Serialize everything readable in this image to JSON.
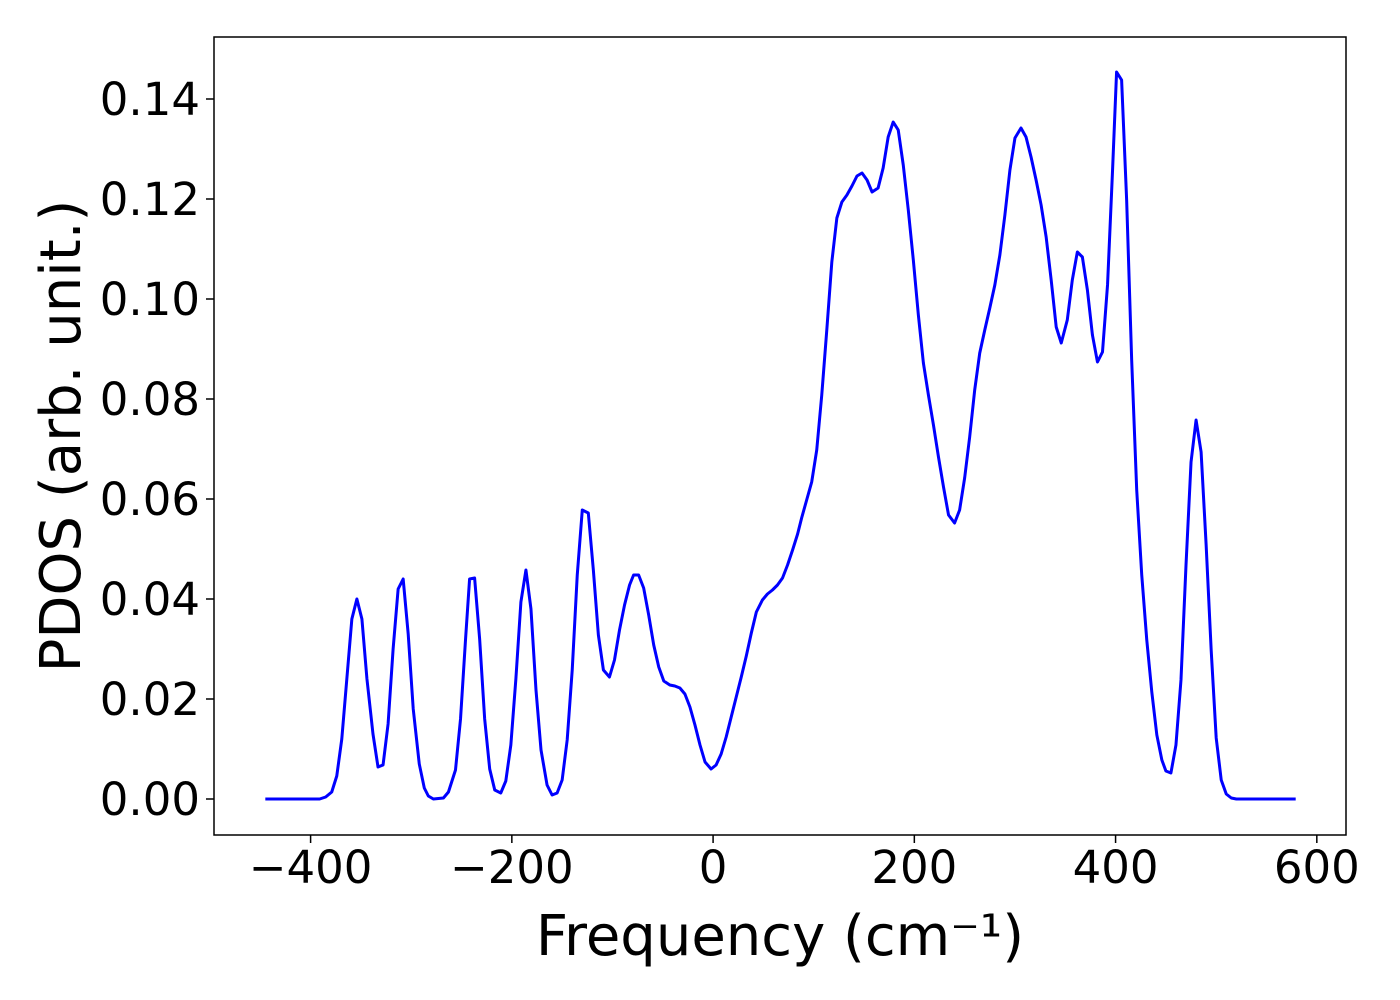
{
  "chart_data": {
    "type": "line",
    "xlabel": "Frequency (cm⁻¹)",
    "ylabel": "PDOS (arb. unit.)",
    "color": "#0000ff",
    "xlim": [
      -496,
      629
    ],
    "ylim": [
      -0.0072,
      0.1524
    ],
    "xticks": [
      {
        "value": -400,
        "label": "−400"
      },
      {
        "value": -200,
        "label": "−200"
      },
      0,
      200,
      400,
      600
    ],
    "yticks": [
      {
        "value": 0,
        "label": "0.00"
      },
      {
        "value": 0.02,
        "label": "0.02"
      },
      {
        "value": 0.04,
        "label": "0.04"
      },
      {
        "value": 0.06,
        "label": "0.06"
      },
      {
        "value": 0.08,
        "label": "0.08"
      },
      {
        "value": 0.1,
        "label": "0.10"
      },
      {
        "value": 0.12,
        "label": "0.12"
      },
      {
        "value": 0.14,
        "label": "0.14"
      }
    ],
    "x": [
      -445,
      -391,
      -385,
      -379,
      -374,
      -369,
      -364,
      -359,
      -354,
      -349,
      -344,
      -338,
      -333,
      -328,
      -323,
      -318,
      -313,
      -308,
      -303,
      -298,
      -292,
      -287,
      -283,
      -278,
      -268,
      -263,
      -256,
      -251,
      -246,
      -242,
      -237,
      -232,
      -227,
      -222,
      -217,
      -211,
      -206,
      -201,
      -196,
      -191,
      -186,
      -181,
      -176,
      -171,
      -165,
      -160,
      -155,
      -150,
      -145,
      -140,
      -135,
      -130,
      -124,
      -119,
      -114,
      -109,
      -103,
      -98,
      -93,
      -88,
      -83,
      -79,
      -74,
      -69,
      -64,
      -59,
      -54,
      -49,
      -43,
      -38,
      -33,
      -28,
      -23,
      -18,
      -13,
      -8,
      -2,
      3,
      8,
      13,
      18,
      23,
      28,
      33,
      38,
      43,
      49,
      54,
      59,
      64,
      69,
      74,
      79,
      84,
      88,
      93,
      98,
      103,
      108,
      113,
      118,
      123,
      128,
      133,
      138,
      143,
      148,
      153,
      158,
      164,
      169,
      174,
      179,
      184,
      189,
      194,
      199,
      204,
      209,
      214,
      219,
      224,
      229,
      234,
      240,
      245,
      250,
      255,
      260,
      265,
      270,
      275,
      280,
      285,
      290,
      295,
      300,
      306,
      311,
      316,
      321,
      326,
      331,
      336,
      341,
      346,
      352,
      357,
      362,
      367,
      372,
      377,
      382,
      387,
      392,
      397,
      401,
      406,
      411,
      416,
      421,
      426,
      431,
      436,
      441,
      446,
      450,
      455,
      460,
      465,
      470,
      475,
      480,
      485,
      490,
      495,
      500,
      505,
      510,
      515,
      520,
      579
    ],
    "values": [
      0,
      0,
      0.0004,
      0.0014,
      0.0046,
      0.012,
      0.024,
      0.036,
      0.04,
      0.036,
      0.024,
      0.013,
      0.0064,
      0.0068,
      0.015,
      0.03,
      0.042,
      0.044,
      0.033,
      0.018,
      0.007,
      0.0022,
      0.0006,
      0,
      0.0002,
      0.0014,
      0.0058,
      0.016,
      0.032,
      0.044,
      0.0442,
      0.032,
      0.016,
      0.006,
      0.0018,
      0.0012,
      0.0036,
      0.0108,
      0.024,
      0.0394,
      0.0458,
      0.038,
      0.0218,
      0.0098,
      0.0028,
      0.0008,
      0.0012,
      0.0038,
      0.0118,
      0.0258,
      0.0448,
      0.0578,
      0.0572,
      0.0458,
      0.0328,
      0.0258,
      0.0244,
      0.0278,
      0.0338,
      0.0388,
      0.0428,
      0.0448,
      0.0448,
      0.0422,
      0.0368,
      0.0308,
      0.0264,
      0.0236,
      0.0228,
      0.0226,
      0.0222,
      0.021,
      0.0184,
      0.0148,
      0.0108,
      0.0074,
      0.006,
      0.0068,
      0.009,
      0.0124,
      0.0164,
      0.0204,
      0.0244,
      0.0286,
      0.0332,
      0.0374,
      0.0398,
      0.041,
      0.0418,
      0.0428,
      0.0442,
      0.0468,
      0.0498,
      0.053,
      0.0562,
      0.0598,
      0.0634,
      0.0698,
      0.0808,
      0.0938,
      0.1074,
      0.1162,
      0.1194,
      0.1208,
      0.1226,
      0.1246,
      0.1252,
      0.1238,
      0.1214,
      0.1222,
      0.1262,
      0.1324,
      0.1354,
      0.1338,
      0.1268,
      0.1178,
      0.1078,
      0.0968,
      0.0872,
      0.0808,
      0.0748,
      0.0684,
      0.0624,
      0.0568,
      0.0552,
      0.0578,
      0.0642,
      0.0724,
      0.0818,
      0.0892,
      0.0938,
      0.0982,
      0.1028,
      0.1088,
      0.1168,
      0.1258,
      0.1322,
      0.1342,
      0.1324,
      0.1284,
      0.1238,
      0.1188,
      0.1124,
      0.1038,
      0.0944,
      0.0912,
      0.0958,
      0.1038,
      0.1094,
      0.1084,
      0.1018,
      0.0928,
      0.0874,
      0.0894,
      0.1028,
      0.1258,
      0.1454,
      0.1438,
      0.1198,
      0.0878,
      0.0618,
      0.0448,
      0.0318,
      0.0214,
      0.0128,
      0.0078,
      0.0056,
      0.0052,
      0.0108,
      0.0238,
      0.0468,
      0.0674,
      0.0758,
      0.0694,
      0.0508,
      0.0298,
      0.0122,
      0.0038,
      0.001,
      0.0002,
      0,
      0
    ]
  }
}
